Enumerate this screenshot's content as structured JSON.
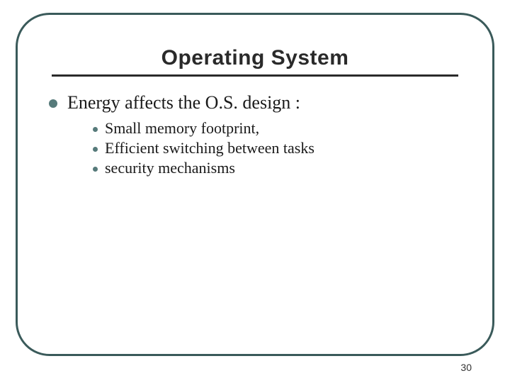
{
  "slide": {
    "title": "Operating System",
    "title_fontsize": 30,
    "title_color": "#2a2a2a",
    "underline_color": "#2a2a2a",
    "underline_thickness": 3,
    "accent_color": "#567a7a",
    "border_color": "#3a5a5a",
    "border_width": 3,
    "border_radius": 48,
    "background_color": "#ffffff",
    "main_bullet": {
      "text": "Energy affects the O.S. design :",
      "fontsize": 26,
      "color": "#1a1a1a",
      "bullet_color": "#567a7a",
      "bullet_size": 12
    },
    "sub_bullets": {
      "fontsize": 22,
      "color": "#1a1a1a",
      "bullet_color": "#567a7a",
      "bullet_size": 7,
      "items": [
        "Small memory footprint,",
        " Efficient switching between tasks",
        "security mechanisms"
      ]
    },
    "page_number": "30",
    "page_number_fontsize": 14
  }
}
